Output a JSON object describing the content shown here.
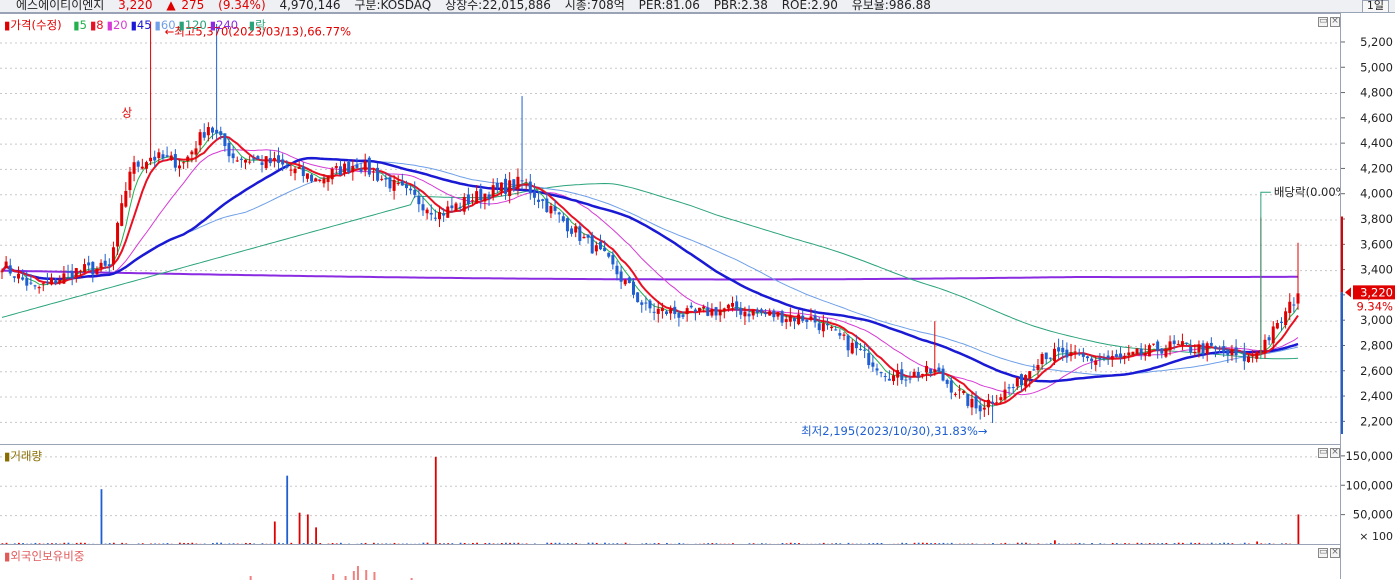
{
  "header": {
    "stock_name": "에스에이티이엔지",
    "price": "3,220",
    "change_arrow": "▲",
    "change": "275",
    "change_pct": "(9.34%)",
    "volume": "4,970,146",
    "market": "구분:KOSDAQ",
    "shares": "상장수:22,015,886",
    "market_cap": "시총:708억",
    "per": "PER:81.06",
    "pbr": "PBR:2.38",
    "roe": "ROE:2.90",
    "reserve": "유보율:986.88",
    "period_button": "1일"
  },
  "price_panel": {
    "legend": {
      "price_label": "가격(수정)",
      "ma": [
        {
          "label": "5",
          "color": "#22b14c"
        },
        {
          "label": "8",
          "color": "#e81123"
        },
        {
          "label": "20",
          "color": "#d63bd6"
        },
        {
          "label": "45",
          "color": "#1a1ad4"
        },
        {
          "label": "60",
          "color": "#6fa0e8"
        },
        {
          "label": "120",
          "color": "#2aa37a"
        },
        {
          "label": "240",
          "color": "#8a2be2"
        }
      ],
      "ex_label": "락"
    },
    "high_annotation": "최고5,370(2023/03/13),66.77%",
    "low_annotation": "최저2,195(2023/10/30),31.83%",
    "dividend_label": "배당락(0.00%)",
    "marker_label": "상",
    "current_price_tag": "3,220",
    "current_pct_tag": "9.34%",
    "y_ticks": [
      "5,200",
      "5,000",
      "4,800",
      "4,600",
      "4,400",
      "4,200",
      "4,000",
      "3,800",
      "3,600",
      "3,400",
      "3,200",
      "3,000",
      "2,800",
      "2,600",
      "2,400",
      "2,200"
    ]
  },
  "volume_panel": {
    "title": "거래량",
    "y_ticks": [
      "150,000",
      "100,000",
      "50,000"
    ],
    "unit": "× 100"
  },
  "foreign_panel": {
    "title": "외국인보유비중"
  },
  "colors": {
    "up": "#e00000",
    "down": "#1f5fd1",
    "grid": "#c8c8c8"
  },
  "chart_data": {
    "type": "candlestick",
    "close_series_anchors": [
      {
        "idx": 0,
        "close": 3450
      },
      {
        "idx": 8,
        "close": 3250
      },
      {
        "idx": 18,
        "close": 3400
      },
      {
        "idx": 26,
        "close": 3420
      },
      {
        "idx": 31,
        "close": 4200
      },
      {
        "idx": 36,
        "close": 4300
      },
      {
        "idx": 44,
        "close": 4250
      },
      {
        "idx": 50,
        "close": 4550
      },
      {
        "idx": 56,
        "close": 4300
      },
      {
        "idx": 66,
        "close": 4250
      },
      {
        "idx": 76,
        "close": 4120
      },
      {
        "idx": 86,
        "close": 4250
      },
      {
        "idx": 96,
        "close": 4050
      },
      {
        "idx": 106,
        "close": 3850
      },
      {
        "idx": 116,
        "close": 4000
      },
      {
        "idx": 126,
        "close": 4100
      },
      {
        "idx": 134,
        "close": 3850
      },
      {
        "idx": 146,
        "close": 3500
      },
      {
        "idx": 156,
        "close": 3100
      },
      {
        "idx": 166,
        "close": 3050
      },
      {
        "idx": 176,
        "close": 3100
      },
      {
        "idx": 186,
        "close": 3050
      },
      {
        "idx": 196,
        "close": 3020
      },
      {
        "idx": 206,
        "close": 2800
      },
      {
        "idx": 216,
        "close": 2560
      },
      {
        "idx": 226,
        "close": 2600
      },
      {
        "idx": 236,
        "close": 2310
      },
      {
        "idx": 246,
        "close": 2500
      },
      {
        "idx": 252,
        "close": 2750
      },
      {
        "idx": 262,
        "close": 2700
      },
      {
        "idx": 272,
        "close": 2700
      },
      {
        "idx": 282,
        "close": 2800
      },
      {
        "idx": 292,
        "close": 2780
      },
      {
        "idx": 302,
        "close": 2700
      },
      {
        "idx": 309,
        "close": 2950
      },
      {
        "idx": 314,
        "close": 3220
      }
    ],
    "high": {
      "value": 5370,
      "date": "2023/03/13"
    },
    "low": {
      "value": 2195,
      "date": "2023/10/30"
    },
    "last_close": 3220,
    "y_range": [
      2100,
      5350
    ],
    "volume_range": [
      0,
      160000
    ]
  }
}
